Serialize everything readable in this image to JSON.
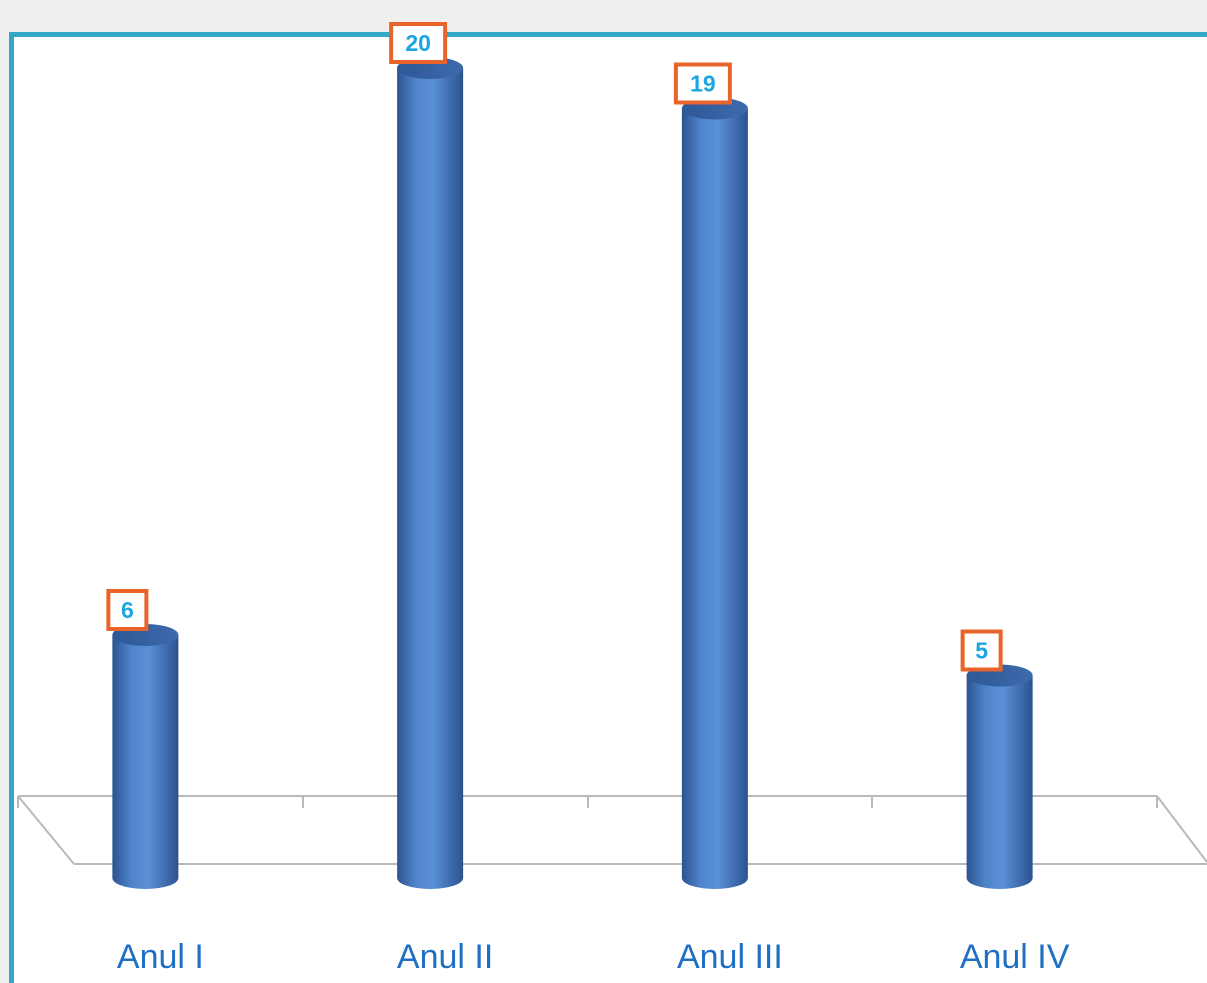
{
  "chart_data": {
    "type": "bar",
    "style": "3d-cylinder",
    "categories": [
      "Anul I",
      "Anul II",
      "Anul III",
      "Anul IV"
    ],
    "values": [
      6,
      20,
      19,
      5
    ],
    "title": "",
    "xlabel": "",
    "ylabel": "",
    "ylim": [
      0,
      20
    ],
    "grid": false,
    "legend": "none"
  },
  "colors": {
    "frame_border": "#31a9c7",
    "bar_fill": "#4a7ec4",
    "label_box_border": "#e8642a",
    "value_text": "#1aa6e0",
    "category_text": "#1f6fc4"
  }
}
